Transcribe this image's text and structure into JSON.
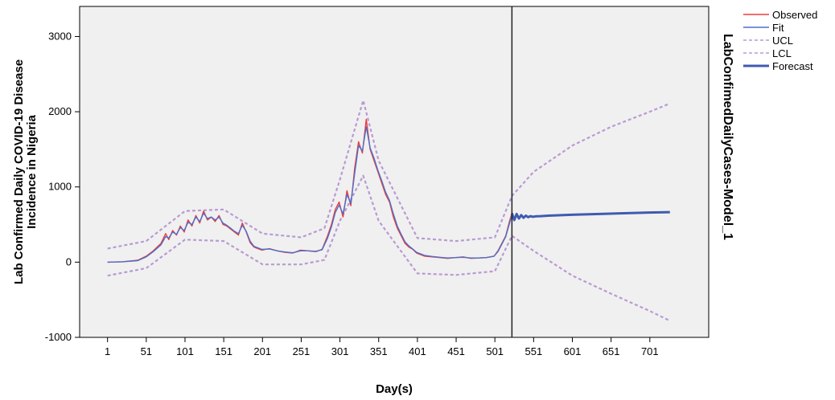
{
  "chart_data": {
    "type": "line",
    "xlabel": "Day(s)",
    "ylabel_lines": [
      "Lab Confirmed Daily COVID-19 Disease",
      "Incidence in Nigeria"
    ],
    "model_label": "LabConfimedDailyCases-Model_1",
    "xlim": [
      -35,
      777
    ],
    "ylim": [
      -1000,
      3400
    ],
    "x_ticks": [
      1,
      51,
      101,
      151,
      201,
      251,
      301,
      351,
      401,
      451,
      501,
      551,
      601,
      651,
      701
    ],
    "y_ticks": [
      -1000,
      0,
      1000,
      2000,
      3000
    ],
    "forecast_start": 523,
    "grid": false,
    "legend_position": "right",
    "legend": [
      "Observed",
      "Fit",
      "UCL",
      "LCL",
      "Forecast"
    ],
    "colors": {
      "observed": "#ee3b3b",
      "fit": "#4f6ec8",
      "ucl": "#b99ad4",
      "lcl": "#b99ad4",
      "forecast": "#3f5bb0",
      "plot_bg": "#f0f0f0"
    },
    "series": [
      {
        "name": "Observed",
        "x": [
          1,
          20,
          40,
          51,
          60,
          70,
          76,
          80,
          85,
          90,
          95,
          100,
          105,
          110,
          115,
          120,
          125,
          130,
          135,
          140,
          145,
          150,
          155,
          160,
          165,
          170,
          175,
          180,
          185,
          190,
          200,
          210,
          220,
          230,
          240,
          250,
          260,
          270,
          278,
          285,
          290,
          295,
          300,
          305,
          310,
          315,
          320,
          325,
          330,
          335,
          340,
          345,
          350,
          355,
          360,
          365,
          370,
          375,
          380,
          385,
          390,
          395,
          400,
          410,
          420,
          430,
          440,
          450,
          460,
          470,
          480,
          490,
          500,
          505,
          510,
          515,
          520,
          523
        ],
        "y": [
          0,
          5,
          25,
          80,
          150,
          250,
          380,
          300,
          420,
          360,
          480,
          400,
          560,
          480,
          620,
          520,
          680,
          560,
          600,
          540,
          620,
          500,
          480,
          440,
          400,
          360,
          520,
          400,
          260,
          200,
          160,
          180,
          150,
          130,
          120,
          160,
          150,
          140,
          170,
          350,
          500,
          700,
          800,
          600,
          950,
          750,
          1250,
          1600,
          1450,
          1900,
          1500,
          1350,
          1200,
          1050,
          900,
          800,
          600,
          450,
          350,
          250,
          200,
          170,
          120,
          80,
          70,
          60,
          50,
          60,
          70,
          50,
          55,
          60,
          80,
          150,
          250,
          350,
          550,
          650
        ]
      },
      {
        "name": "Fit",
        "x": [
          1,
          20,
          40,
          51,
          60,
          70,
          76,
          80,
          85,
          90,
          95,
          100,
          105,
          110,
          115,
          120,
          125,
          130,
          135,
          140,
          145,
          150,
          155,
          160,
          165,
          170,
          175,
          180,
          185,
          190,
          200,
          210,
          220,
          230,
          240,
          250,
          260,
          270,
          278,
          285,
          290,
          295,
          300,
          305,
          310,
          315,
          320,
          325,
          330,
          335,
          340,
          345,
          350,
          355,
          360,
          365,
          370,
          375,
          380,
          385,
          390,
          395,
          400,
          410,
          420,
          430,
          440,
          450,
          460,
          470,
          480,
          490,
          500,
          505,
          510,
          515,
          520,
          523
        ],
        "y": [
          0,
          5,
          20,
          70,
          140,
          230,
          340,
          320,
          400,
          370,
          460,
          420,
          530,
          500,
          600,
          540,
          650,
          580,
          600,
          560,
          600,
          520,
          490,
          450,
          410,
          380,
          490,
          410,
          280,
          210,
          170,
          175,
          150,
          135,
          125,
          150,
          150,
          145,
          165,
          320,
          470,
          660,
          760,
          640,
          900,
          780,
          1180,
          1550,
          1480,
          1800,
          1520,
          1380,
          1220,
          1080,
          930,
          820,
          640,
          480,
          370,
          270,
          215,
          175,
          130,
          90,
          75,
          65,
          55,
          60,
          65,
          55,
          55,
          60,
          80,
          140,
          240,
          340,
          520,
          630
        ]
      },
      {
        "name": "UCL",
        "x": [
          1,
          51,
          101,
          151,
          201,
          251,
          281,
          301,
          331,
          351,
          401,
          451,
          501,
          523,
          551,
          601,
          651,
          701,
          727
        ],
        "y": [
          180,
          280,
          680,
          700,
          380,
          330,
          450,
          1100,
          2150,
          1350,
          320,
          280,
          330,
          880,
          1200,
          1550,
          1800,
          2000,
          2110
        ]
      },
      {
        "name": "LCL",
        "x": [
          1,
          51,
          101,
          151,
          201,
          251,
          281,
          301,
          331,
          351,
          401,
          451,
          501,
          523,
          551,
          601,
          651,
          701,
          727
        ],
        "y": [
          -180,
          -80,
          300,
          280,
          -30,
          -30,
          30,
          550,
          1150,
          550,
          -150,
          -170,
          -120,
          350,
          150,
          -180,
          -420,
          -650,
          -780
        ]
      },
      {
        "name": "Forecast",
        "x": [
          523,
          526,
          529,
          532,
          535,
          538,
          541,
          544,
          547,
          550,
          555,
          560,
          570,
          580,
          600,
          650,
          700,
          727
        ],
        "y": [
          650,
          560,
          640,
          580,
          625,
          590,
          618,
          598,
          612,
          603,
          610,
          612,
          618,
          622,
          630,
          645,
          660,
          665
        ]
      }
    ]
  }
}
